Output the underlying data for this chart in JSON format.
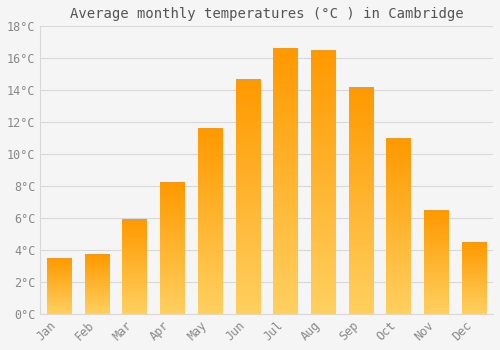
{
  "title": "Average monthly temperatures (°C ) in Cambridge",
  "months": [
    "Jan",
    "Feb",
    "Mar",
    "Apr",
    "May",
    "Jun",
    "Jul",
    "Aug",
    "Sep",
    "Oct",
    "Nov",
    "Dec"
  ],
  "values": [
    3.5,
    3.7,
    5.9,
    8.2,
    11.6,
    14.7,
    16.6,
    16.5,
    14.2,
    11.0,
    6.5,
    4.5
  ],
  "bar_color_bottom": "#FFD060",
  "bar_color_top": "#FF9900",
  "background_color": "#F5F5F5",
  "grid_color": "#D8D8D8",
  "text_color": "#888888",
  "title_color": "#555555",
  "ylim": [
    0,
    18
  ],
  "ytick_step": 2,
  "title_fontsize": 10,
  "tick_fontsize": 8.5,
  "bar_width": 0.65
}
